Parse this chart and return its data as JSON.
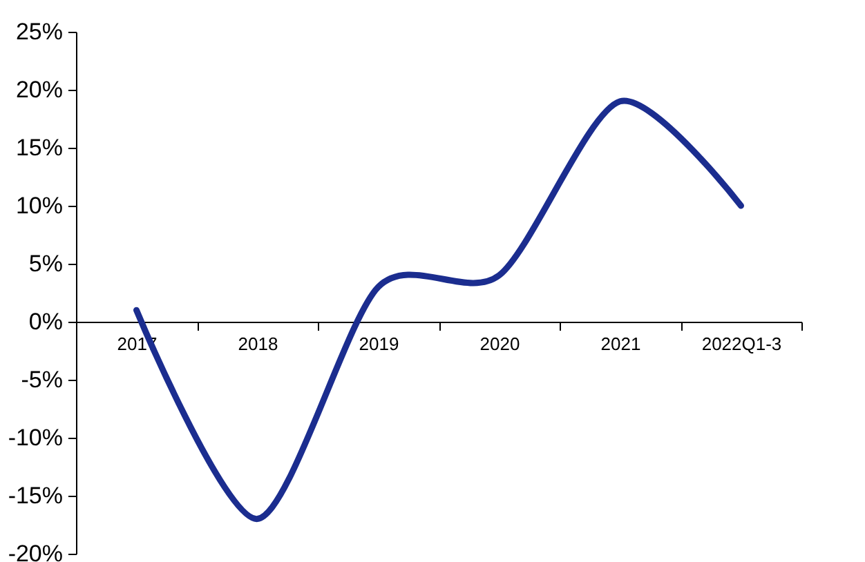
{
  "chart_data": {
    "type": "line",
    "categories": [
      "2017",
      "2018",
      "2019",
      "2020",
      "2021",
      "2022Q1-3"
    ],
    "series": [
      {
        "color": "#1b2d8f",
        "values": [
          1,
          -17,
          3,
          4,
          19,
          10
        ]
      }
    ],
    "ylim": [
      -20,
      25
    ],
    "yticks": [
      {
        "value": -20,
        "label": "-20%"
      },
      {
        "value": -15,
        "label": "-15%"
      },
      {
        "value": -10,
        "label": "-10%"
      },
      {
        "value": -5,
        "label": "-5%"
      },
      {
        "value": 0,
        "label": "0%"
      },
      {
        "value": 5,
        "label": "5%"
      },
      {
        "value": 10,
        "label": "10%"
      },
      {
        "value": 15,
        "label": "15%"
      },
      {
        "value": 20,
        "label": "20%"
      },
      {
        "value": 25,
        "label": "25%"
      }
    ],
    "grid": false,
    "marker": "none",
    "line_style": "solid"
  }
}
